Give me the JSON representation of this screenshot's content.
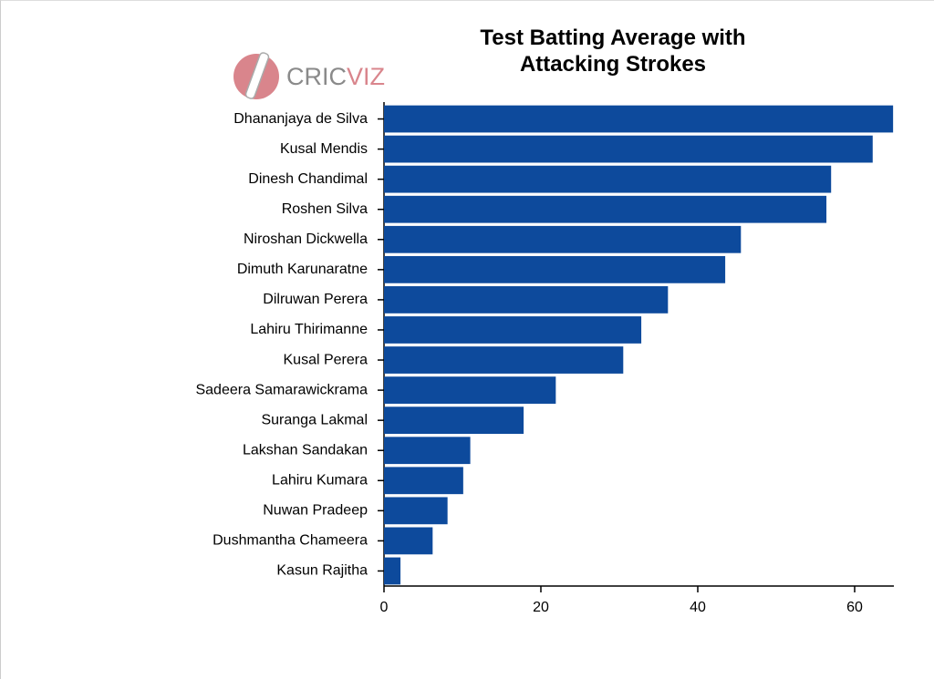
{
  "chart_data": {
    "type": "hbar",
    "title": "Test Batting Average with Attacking Strokes",
    "watermark": [
      "CRIC",
      "VIZ"
    ],
    "categories": [
      "Dhananjaya de Silva",
      "Kusal Mendis",
      "Dinesh Chandimal",
      "Roshen Silva",
      "Niroshan Dickwella",
      "Dimuth Karunaratne",
      "Dilruwan Perera",
      "Lahiru Thirimanne",
      "Kusal Perera",
      "Sadeera Samarawickrama",
      "Suranga Lakmal",
      "Lakshan Sandakan",
      "Lahiru Kumara",
      "Nuwan Pradeep",
      "Dushmantha Chameera",
      "Kasun Rajitha"
    ],
    "values": [
      64.9,
      62.3,
      57.0,
      56.4,
      45.5,
      43.5,
      36.2,
      32.8,
      30.5,
      21.9,
      17.8,
      11.0,
      10.1,
      8.1,
      6.2,
      2.1
    ],
    "color": "#0d4a9c",
    "xlim": [
      0,
      65
    ],
    "xticks": [
      0,
      20,
      40,
      60
    ],
    "grid": false
  }
}
